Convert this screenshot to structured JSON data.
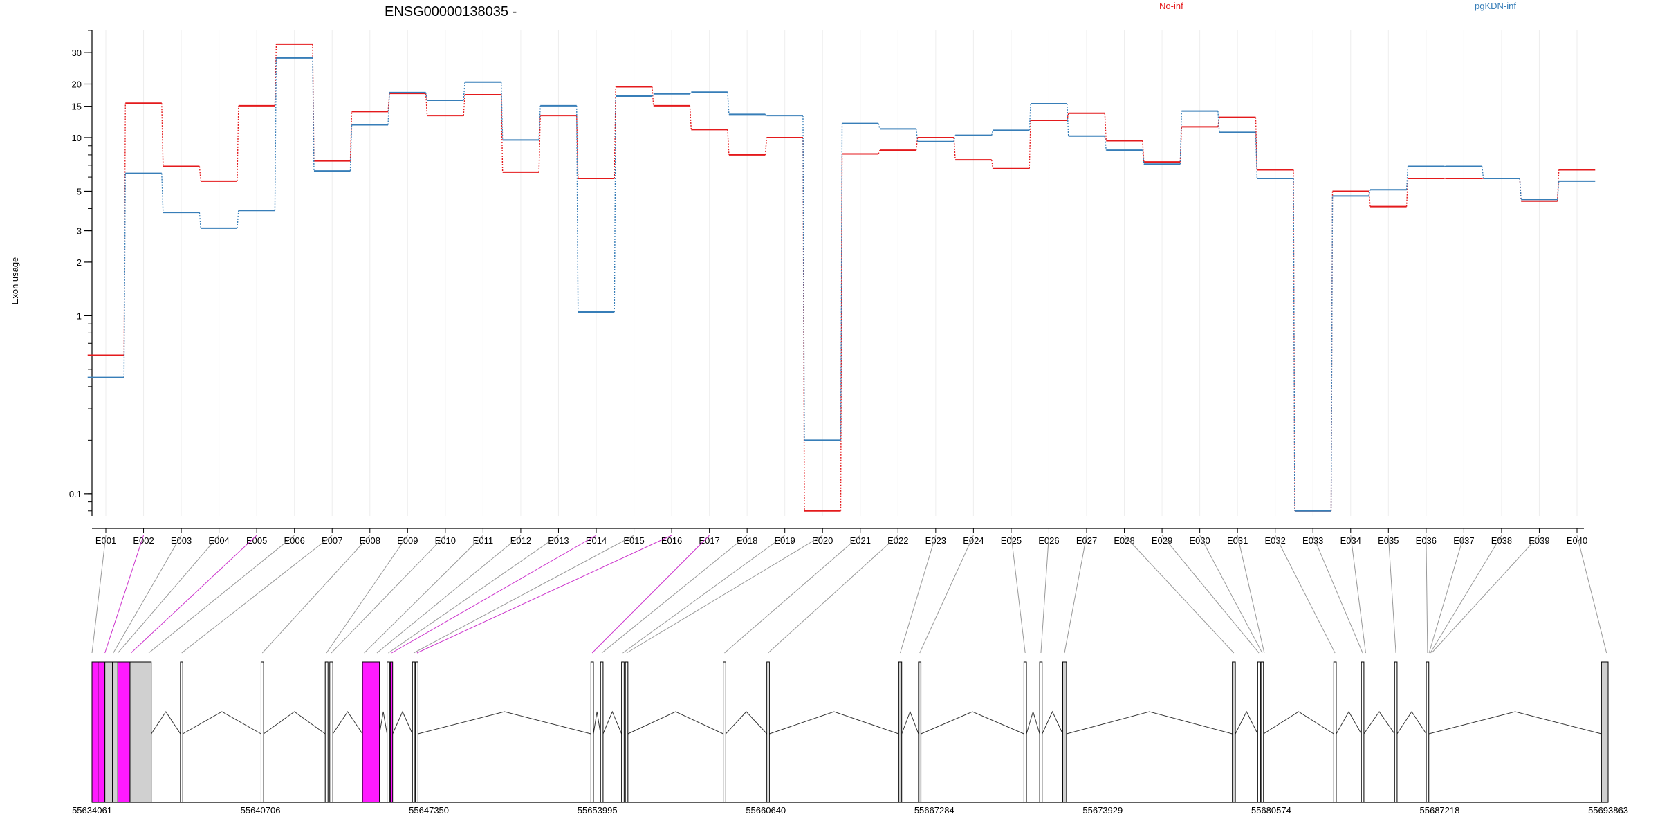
{
  "chart_data": {
    "type": "line",
    "title": "ENSG00000138035 -",
    "ylabel": "Exon usage",
    "y_scale": "log",
    "ylim": [
      0.075,
      40
    ],
    "y_ticks": [
      "0.1",
      "1",
      "2",
      "3",
      "5",
      "10",
      "15",
      "20",
      "30"
    ],
    "categories": [
      "E001",
      "E002",
      "E003",
      "E004",
      "E005",
      "E006",
      "E007",
      "E008",
      "E009",
      "E010",
      "E011",
      "E012",
      "E013",
      "E014",
      "E015",
      "E016",
      "E017",
      "E018",
      "E019",
      "E020",
      "E021",
      "E022",
      "E023",
      "E024",
      "E025",
      "E026",
      "E027",
      "E028",
      "E029",
      "E030",
      "E031",
      "E032",
      "E033",
      "E034",
      "E035",
      "E036",
      "E037",
      "E038",
      "E039",
      "E040"
    ],
    "series": [
      {
        "name": "No-inf",
        "color": "#e41a1c",
        "values": [
          0.6,
          15.6,
          6.9,
          5.7,
          15.1,
          33.5,
          7.4,
          14.0,
          17.7,
          13.3,
          17.4,
          6.4,
          13.3,
          5.9,
          19.3,
          15.1,
          11.1,
          8.0,
          10.0,
          0.08,
          8.1,
          8.5,
          10.0,
          7.5,
          6.7,
          12.5,
          13.7,
          9.6,
          7.3,
          11.5,
          13.0,
          6.6,
          0.08,
          5.0,
          4.1,
          5.9,
          5.9,
          5.9,
          4.4,
          6.6
        ]
      },
      {
        "name": "pgKDN-inf",
        "color": "#377eb8",
        "values": [
          0.45,
          6.3,
          3.8,
          3.1,
          3.9,
          28.0,
          6.5,
          11.8,
          17.9,
          16.2,
          20.5,
          9.7,
          15.1,
          1.05,
          17.1,
          17.6,
          18.0,
          13.5,
          13.3,
          0.2,
          12.0,
          11.2,
          9.5,
          10.3,
          11.0,
          15.5,
          10.2,
          8.5,
          7.1,
          14.1,
          10.7,
          5.9,
          0.08,
          4.7,
          5.1,
          6.9,
          6.9,
          5.9,
          4.5,
          5.7
        ]
      }
    ],
    "legend_placement": "top",
    "gene_model": {
      "coordinate_labels": [
        "55634061",
        "55640706",
        "55647350",
        "55653995",
        "55660640",
        "55667284",
        "55673929",
        "55680574",
        "55687218",
        "55693863"
      ],
      "genomic_range": [
        55634061,
        55693863
      ],
      "exons": [
        {
          "start": 55634061,
          "end": 55634300,
          "fill": "#ff1aff"
        },
        {
          "start": 55634300,
          "end": 55634570,
          "fill": "#ff1aff"
        },
        {
          "start": 55634570,
          "end": 55634870,
          "fill": "#d0d0d0"
        },
        {
          "start": 55634870,
          "end": 55635080,
          "fill": "#d0d0d0"
        },
        {
          "start": 55635080,
          "end": 55635560,
          "fill": "#ff1aff"
        },
        {
          "start": 55635560,
          "end": 55636400,
          "fill": "#d0d0d0"
        },
        {
          "start": 55637550,
          "end": 55637640,
          "fill": "#ffffff"
        },
        {
          "start": 55640730,
          "end": 55640830,
          "fill": "#ffffff"
        },
        {
          "start": 55643260,
          "end": 55643370,
          "fill": "#ffffff"
        },
        {
          "start": 55643440,
          "end": 55643560,
          "fill": "#ffffff"
        },
        {
          "start": 55644730,
          "end": 55645400,
          "fill": "#ff1aff"
        },
        {
          "start": 55645700,
          "end": 55645800,
          "fill": "#ffffff"
        },
        {
          "start": 55645830,
          "end": 55645920,
          "fill": "#ff1aff"
        },
        {
          "start": 55646700,
          "end": 55646800,
          "fill": "#ffffff"
        },
        {
          "start": 55646830,
          "end": 55646920,
          "fill": "#ffffff"
        },
        {
          "start": 55653740,
          "end": 55653840,
          "fill": "#ffffff"
        },
        {
          "start": 55654120,
          "end": 55654220,
          "fill": "#ffffff"
        },
        {
          "start": 55654950,
          "end": 55655050,
          "fill": "#ffffff"
        },
        {
          "start": 55655100,
          "end": 55655200,
          "fill": "#ffffff"
        },
        {
          "start": 55658960,
          "end": 55659060,
          "fill": "#ffffff"
        },
        {
          "start": 55660680,
          "end": 55660780,
          "fill": "#ffffff"
        },
        {
          "start": 55665880,
          "end": 55666000,
          "fill": "#d0d0d0"
        },
        {
          "start": 55666660,
          "end": 55666760,
          "fill": "#d0d0d0"
        },
        {
          "start": 55670820,
          "end": 55670920,
          "fill": "#ffffff"
        },
        {
          "start": 55671440,
          "end": 55671540,
          "fill": "#ffffff"
        },
        {
          "start": 55672350,
          "end": 55672500,
          "fill": "#d0d0d0"
        },
        {
          "start": 55679040,
          "end": 55679160,
          "fill": "#d0d0d0"
        },
        {
          "start": 55680040,
          "end": 55680140,
          "fill": "#ffffff"
        },
        {
          "start": 55680170,
          "end": 55680270,
          "fill": "#ffffff"
        },
        {
          "start": 55683040,
          "end": 55683140,
          "fill": "#ffffff"
        },
        {
          "start": 55684130,
          "end": 55684230,
          "fill": "#ffffff"
        },
        {
          "start": 55685440,
          "end": 55685540,
          "fill": "#ffffff"
        },
        {
          "start": 55686690,
          "end": 55686790,
          "fill": "#ffffff"
        },
        {
          "start": 55693600,
          "end": 55693863,
          "fill": "#d0d0d0"
        }
      ],
      "connector_anchors": [
        55634061,
        55634570,
        55634900,
        55635080,
        55635600,
        55636300,
        55637600,
        55640780,
        55643310,
        55643500,
        55644800,
        55645300,
        55645750,
        55645880,
        55646750,
        55646880,
        55653790,
        55654170,
        55655000,
        55655150,
        55659010,
        55660730,
        55665940,
        55666710,
        55670870,
        55671490,
        55672420,
        55679100,
        55680090,
        55680220,
        55680300,
        55683090,
        55684180,
        55684300,
        55685490,
        55686740,
        55686800,
        55686850,
        55686900,
        55693800
      ],
      "connector_highlight": [
        "E002",
        "E005",
        "E014",
        "E016",
        "E017"
      ],
      "colors": {
        "highlight_exon": "#ff1aff",
        "plain_exon": "#ffffff",
        "shaded_exon": "#d0d0d0",
        "connector": "#999999",
        "connector_highlight": "#cc33cc"
      }
    }
  }
}
